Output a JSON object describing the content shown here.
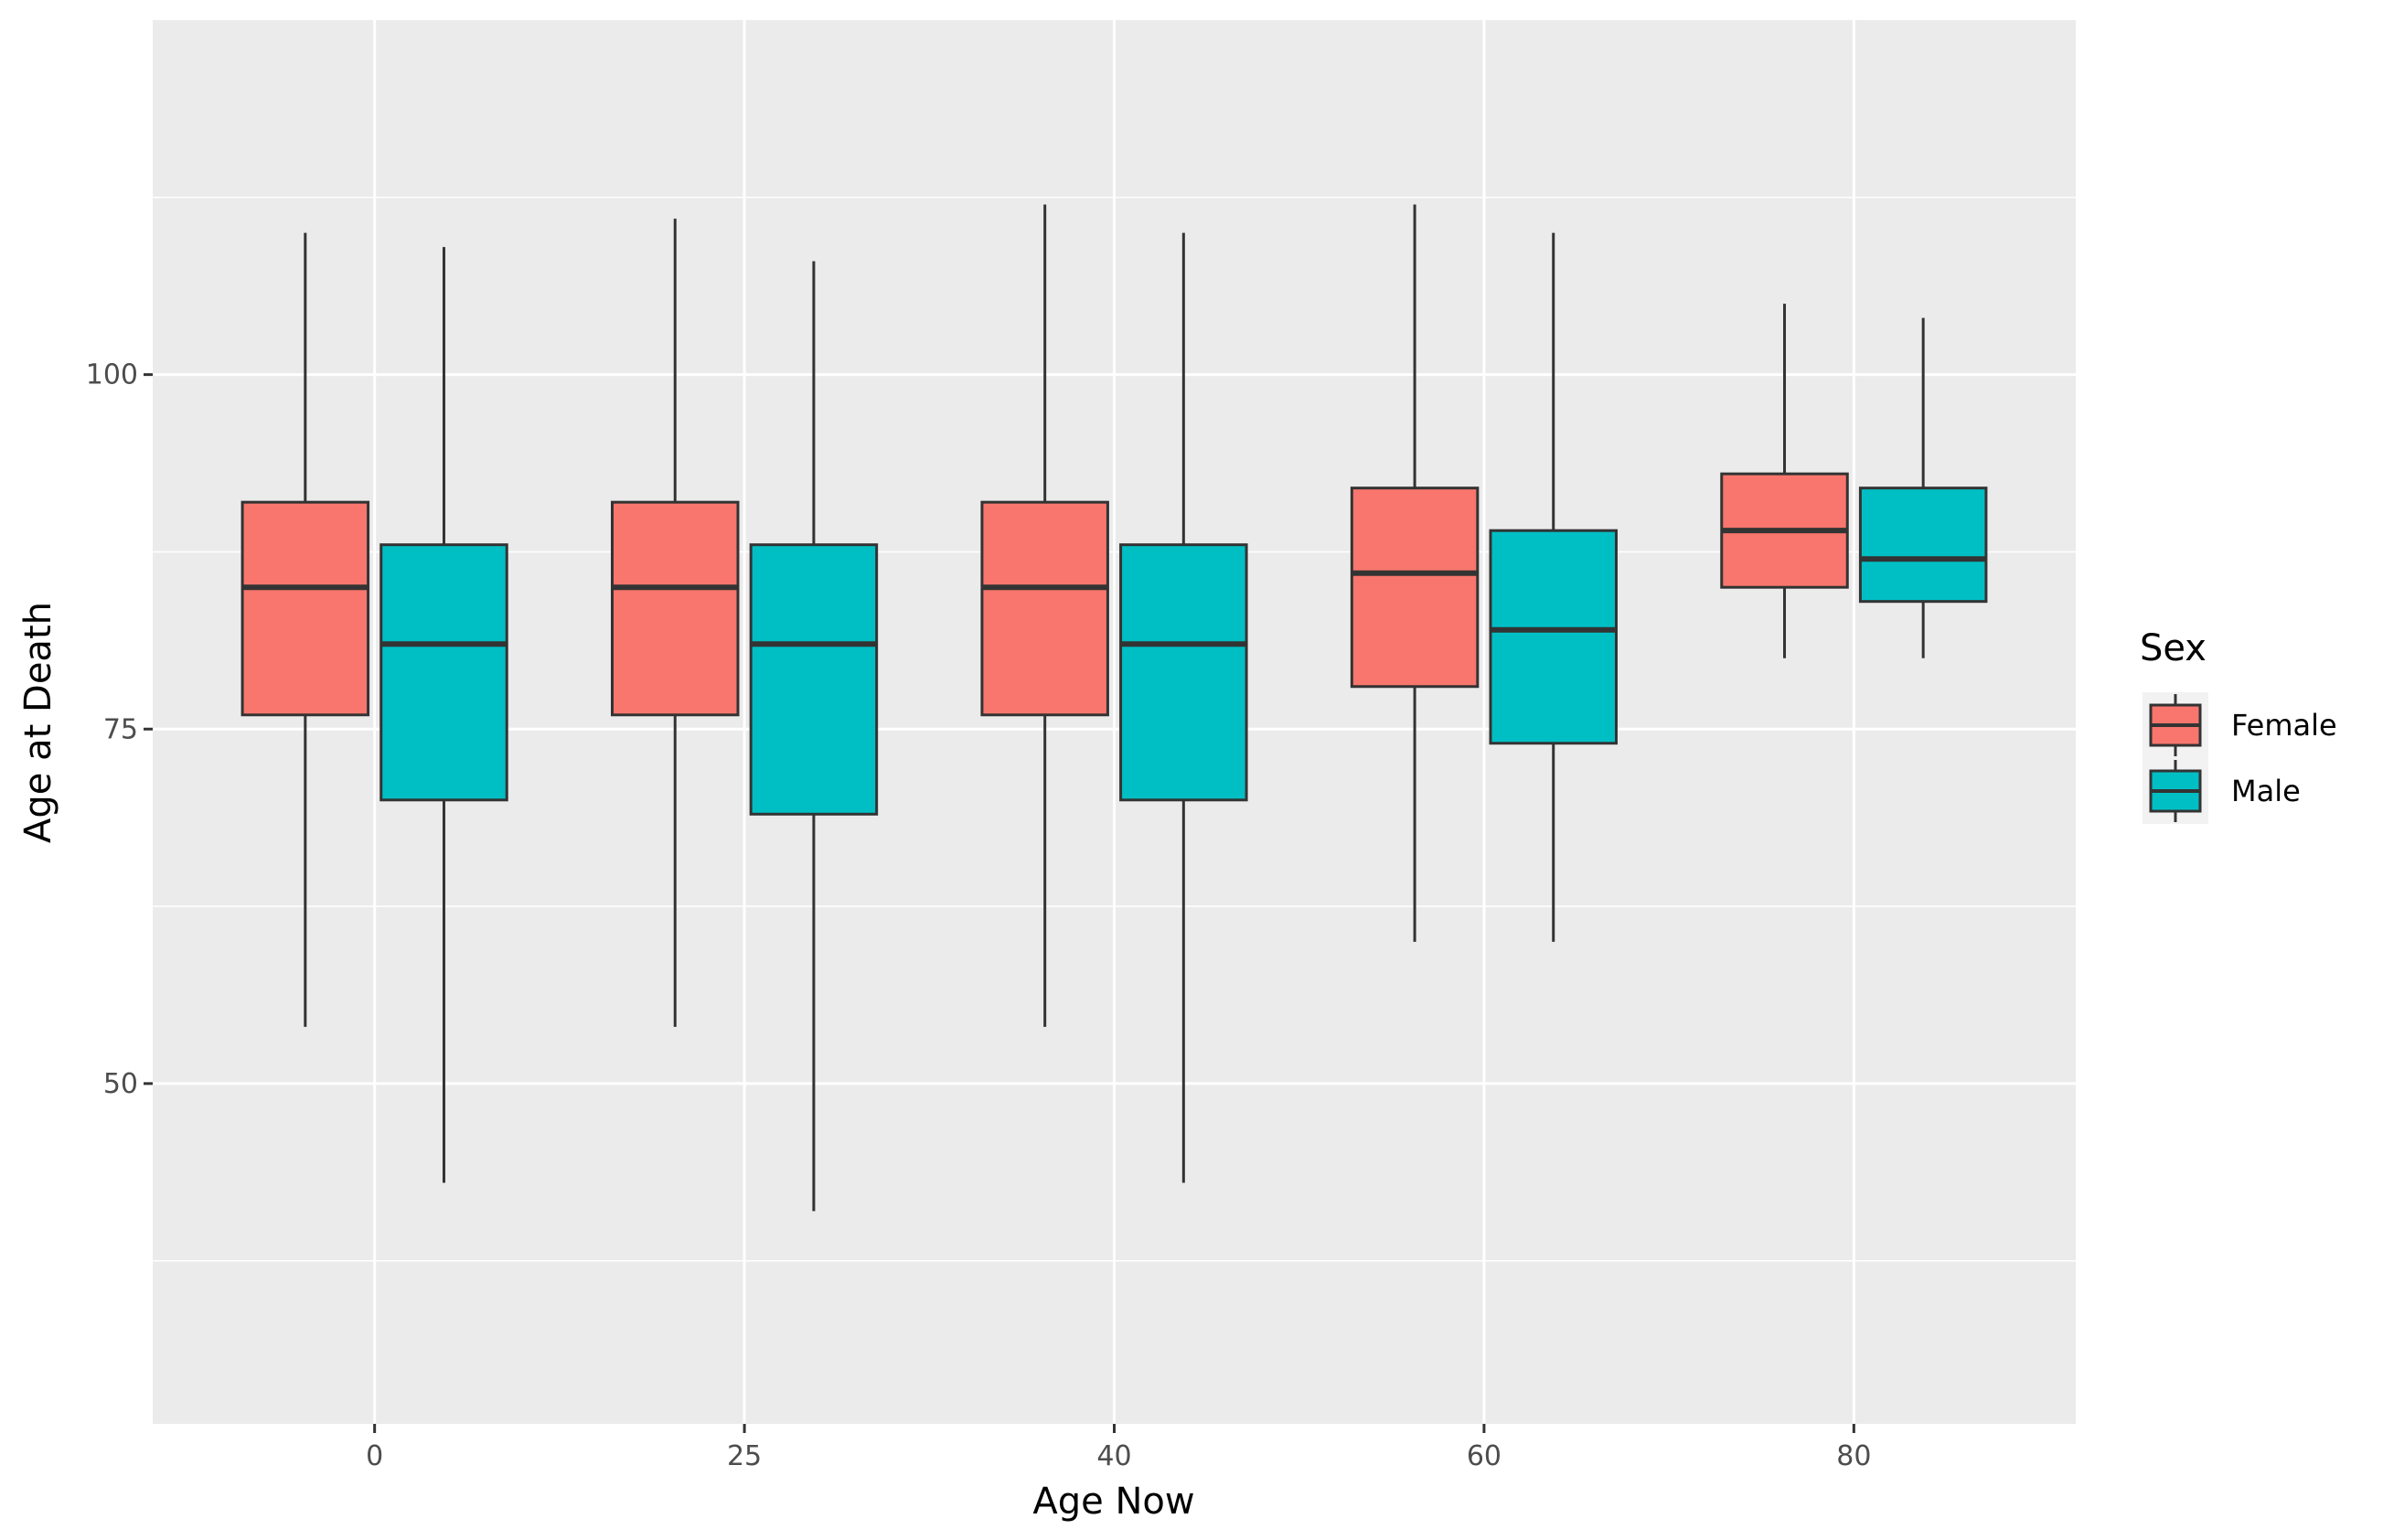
{
  "chart_data": {
    "type": "boxplot",
    "xlabel": "Age Now",
    "ylabel": "Age at Death",
    "categories": [
      "0",
      "25",
      "40",
      "60",
      "80"
    ],
    "ylim": [
      26,
      125
    ],
    "yticks": [
      50,
      75,
      100
    ],
    "grid": true,
    "legend": {
      "title": "Sex",
      "placement": "right"
    },
    "series": [
      {
        "name": "Female",
        "color": "#F8766D",
        "boxes": [
          {
            "min": 54,
            "q1": 76,
            "median": 85,
            "q3": 91,
            "max": 110
          },
          {
            "min": 54,
            "q1": 76,
            "median": 85,
            "q3": 91,
            "max": 111
          },
          {
            "min": 54,
            "q1": 76,
            "median": 85,
            "q3": 91,
            "max": 112
          },
          {
            "min": 60,
            "q1": 78,
            "median": 86,
            "q3": 92,
            "max": 112
          },
          {
            "min": 80,
            "q1": 85,
            "median": 89,
            "q3": 93,
            "max": 105
          }
        ]
      },
      {
        "name": "Male",
        "color": "#00BFC4",
        "boxes": [
          {
            "min": 43,
            "q1": 70,
            "median": 81,
            "q3": 88,
            "max": 109
          },
          {
            "min": 41,
            "q1": 69,
            "median": 81,
            "q3": 88,
            "max": 108
          },
          {
            "min": 43,
            "q1": 70,
            "median": 81,
            "q3": 88,
            "max": 110
          },
          {
            "min": 60,
            "q1": 74,
            "median": 82,
            "q3": 89,
            "max": 110
          },
          {
            "min": 80,
            "q1": 84,
            "median": 87,
            "q3": 92,
            "max": 104
          }
        ]
      }
    ]
  }
}
